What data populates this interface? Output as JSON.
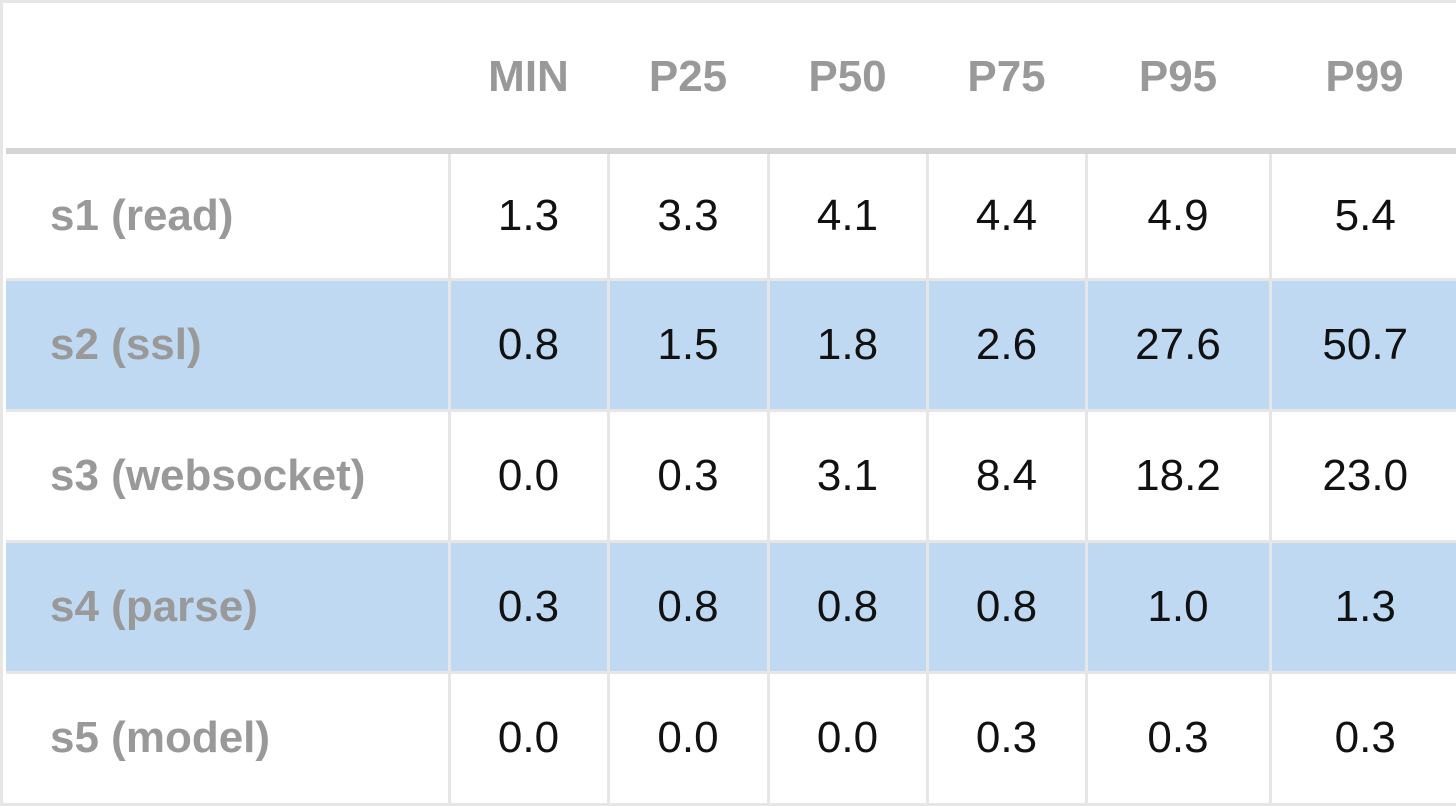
{
  "chart_data": {
    "type": "table",
    "columns": [
      "",
      "MIN",
      "P25",
      "P50",
      "P75",
      "P95",
      "P99"
    ],
    "rows": [
      {
        "label": "s1 (read)",
        "values": [
          "1.3",
          "3.3",
          "4.1",
          "4.4",
          "4.9",
          "5.4"
        ],
        "shaded": false
      },
      {
        "label": "s2 (ssl)",
        "values": [
          "0.8",
          "1.5",
          "1.8",
          "2.6",
          "27.6",
          "50.7"
        ],
        "shaded": true
      },
      {
        "label": "s3 (websocket)",
        "values": [
          "0.0",
          "0.3",
          "3.1",
          "8.4",
          "18.2",
          "23.0"
        ],
        "shaded": false
      },
      {
        "label": "s4 (parse)",
        "values": [
          "0.3",
          "0.8",
          "0.8",
          "0.8",
          "1.0",
          "1.3"
        ],
        "shaded": true
      },
      {
        "label": "s5 (model)",
        "values": [
          "0.0",
          "0.0",
          "0.0",
          "0.3",
          "0.3",
          "0.3"
        ],
        "shaded": false
      }
    ],
    "colors": {
      "header_text": "#999999",
      "label_text": "#999999",
      "value_text": "#111111",
      "shaded_row": "#c0d9f2",
      "grid": "#e6e6e6"
    }
  }
}
